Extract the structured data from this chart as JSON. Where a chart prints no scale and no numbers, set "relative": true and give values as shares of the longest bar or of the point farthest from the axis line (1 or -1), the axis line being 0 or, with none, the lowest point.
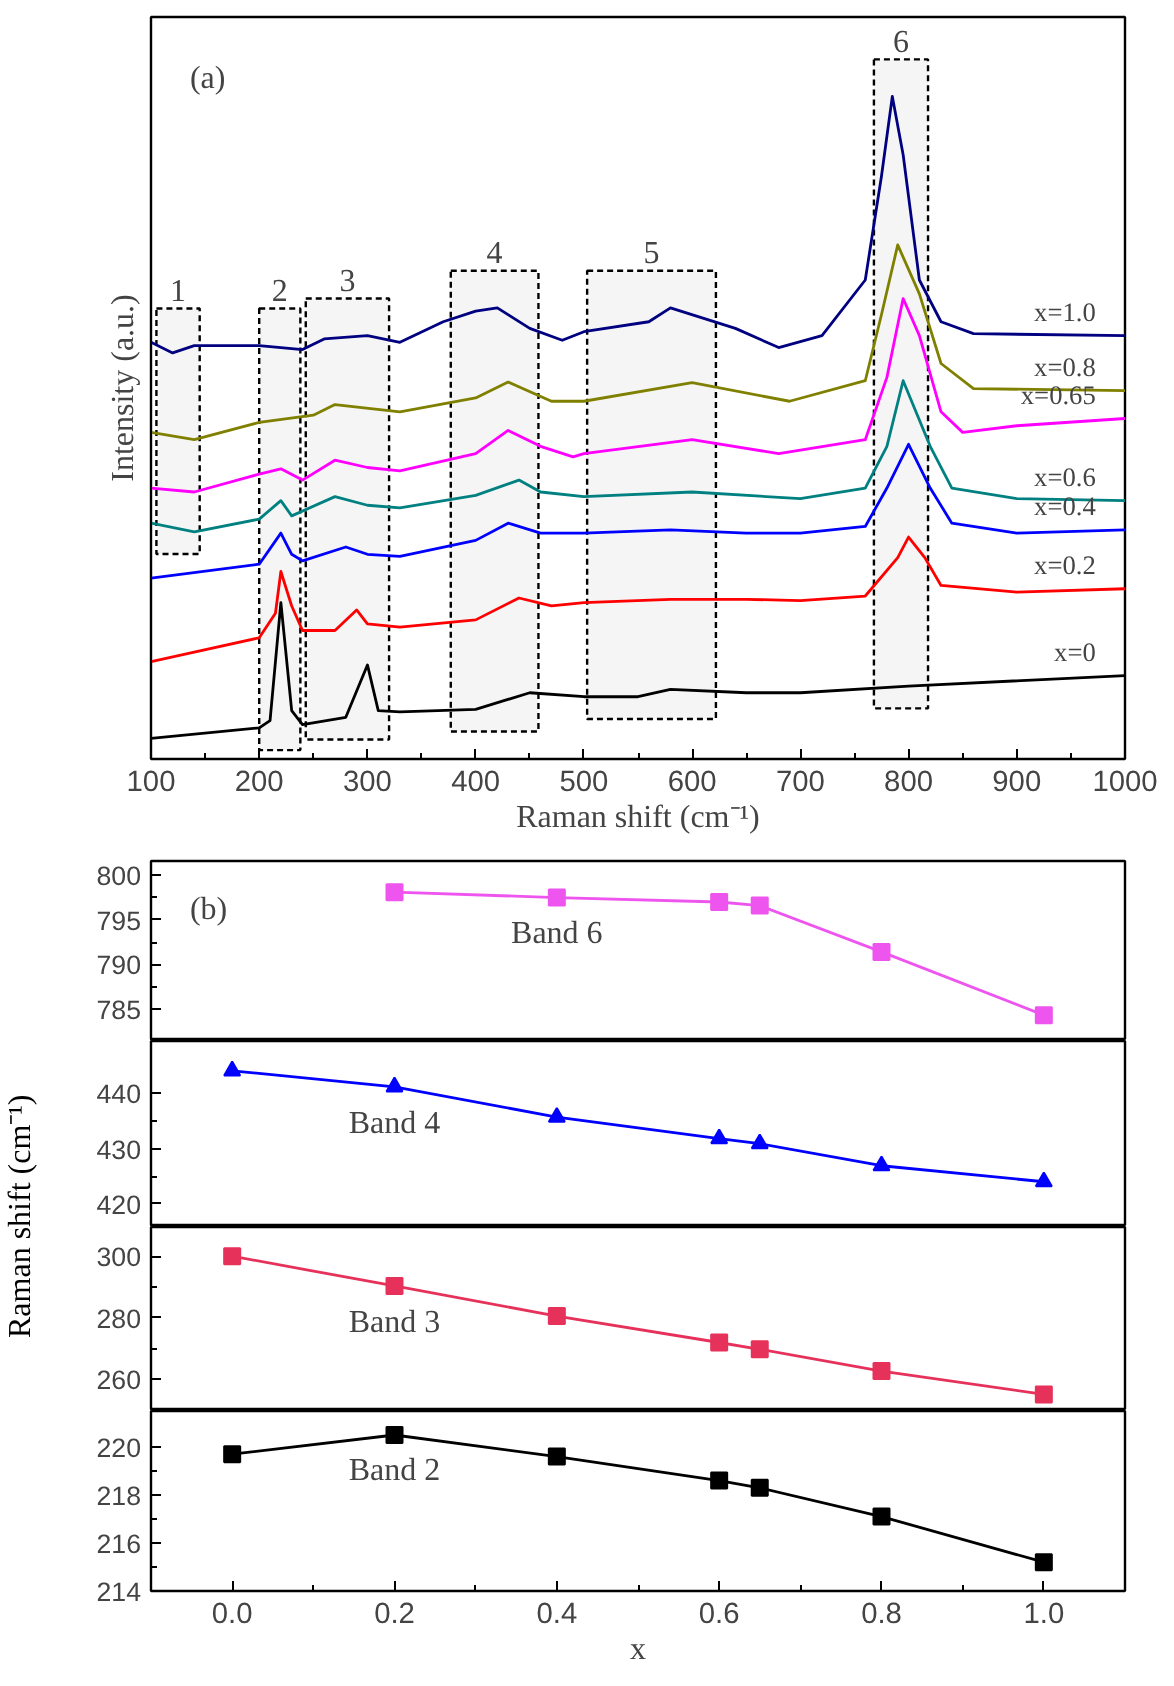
{
  "chart_data": [
    {
      "type": "line",
      "relative": true,
      "xlabel": "Raman shift (cm⁻¹)",
      "ylabel": "Intensity (a.u.)",
      "annotations": [
        "(a)"
      ],
      "xlim": [
        100,
        1000
      ],
      "xticks": [
        100,
        200,
        300,
        400,
        500,
        600,
        700,
        800,
        900,
        1000
      ],
      "series": [
        {
          "name": "x=0",
          "color": "#000000",
          "x": [
            100,
            200,
            210,
            220,
            230,
            240,
            280,
            300,
            310,
            330,
            400,
            450,
            500,
            550,
            580,
            650,
            700,
            800,
            1000
          ],
          "values": [
            0.031,
            0.047,
            0.058,
            0.236,
            0.073,
            0.052,
            0.063,
            0.142,
            0.073,
            0.071,
            0.075,
            0.1,
            0.094,
            0.094,
            0.105,
            0.1,
            0.1,
            0.11,
            0.126
          ]
        },
        {
          "name": "x=0.2",
          "color": "#ff0000",
          "x": [
            100,
            200,
            215,
            220,
            230,
            240,
            270,
            290,
            300,
            330,
            400,
            440,
            470,
            500,
            580,
            650,
            700,
            760,
            790,
            800,
            815,
            830,
            900,
            1000
          ],
          "values": [
            0.147,
            0.183,
            0.22,
            0.283,
            0.231,
            0.194,
            0.194,
            0.225,
            0.204,
            0.199,
            0.21,
            0.243,
            0.231,
            0.236,
            0.241,
            0.241,
            0.239,
            0.246,
            0.304,
            0.335,
            0.304,
            0.262,
            0.252,
            0.257
          ]
        },
        {
          "name": "x=0.4",
          "color": "#0000ff",
          "x": [
            100,
            200,
            220,
            230,
            240,
            280,
            300,
            330,
            400,
            430,
            460,
            500,
            580,
            650,
            700,
            760,
            780,
            800,
            820,
            840,
            900,
            1000
          ],
          "values": [
            0.273,
            0.294,
            0.341,
            0.309,
            0.299,
            0.32,
            0.309,
            0.306,
            0.33,
            0.356,
            0.341,
            0.341,
            0.346,
            0.341,
            0.341,
            0.351,
            0.409,
            0.475,
            0.409,
            0.356,
            0.341,
            0.346
          ]
        },
        {
          "name": "x=0.6",
          "color": "#008080",
          "x": [
            100,
            140,
            200,
            220,
            230,
            270,
            300,
            330,
            400,
            440,
            460,
            500,
            600,
            700,
            760,
            780,
            795,
            820,
            840,
            900,
            1000
          ],
          "values": [
            0.356,
            0.343,
            0.362,
            0.39,
            0.367,
            0.396,
            0.383,
            0.379,
            0.398,
            0.421,
            0.403,
            0.396,
            0.403,
            0.393,
            0.409,
            0.472,
            0.571,
            0.472,
            0.409,
            0.393,
            0.39
          ]
        },
        {
          "name": "x=0.65",
          "color": "#ff00ff",
          "x": [
            100,
            140,
            200,
            220,
            240,
            270,
            300,
            330,
            400,
            430,
            460,
            490,
            500,
            600,
            680,
            760,
            780,
            795,
            810,
            830,
            850,
            900,
            1000
          ],
          "values": [
            0.409,
            0.403,
            0.43,
            0.438,
            0.421,
            0.451,
            0.44,
            0.435,
            0.461,
            0.496,
            0.472,
            0.456,
            0.461,
            0.482,
            0.461,
            0.482,
            0.576,
            0.695,
            0.639,
            0.524,
            0.493,
            0.503,
            0.514
          ]
        },
        {
          "name": "x=0.8",
          "color": "#808000",
          "x": [
            100,
            140,
            200,
            250,
            270,
            330,
            400,
            430,
            470,
            500,
            600,
            690,
            760,
            775,
            790,
            810,
            830,
            860,
            1000
          ],
          "values": [
            0.493,
            0.482,
            0.508,
            0.519,
            0.535,
            0.524,
            0.545,
            0.569,
            0.54,
            0.54,
            0.568,
            0.54,
            0.571,
            0.671,
            0.776,
            0.702,
            0.597,
            0.559,
            0.556
          ]
        },
        {
          "name": "x=1.0",
          "color": "#000080",
          "x": [
            100,
            120,
            140,
            200,
            240,
            260,
            300,
            330,
            370,
            400,
            420,
            450,
            480,
            500,
            560,
            580,
            640,
            680,
            720,
            760,
            775,
            785,
            795,
            810,
            830,
            860,
            1000
          ],
          "values": [
            0.629,
            0.613,
            0.624,
            0.624,
            0.618,
            0.634,
            0.639,
            0.629,
            0.66,
            0.676,
            0.681,
            0.65,
            0.632,
            0.645,
            0.66,
            0.681,
            0.65,
            0.621,
            0.639,
            0.723,
            0.88,
            1.0,
            0.912,
            0.723,
            0.66,
            0.642,
            0.639
          ]
        }
      ],
      "bands": [
        {
          "axis": "x",
          "from": 105,
          "to": 145,
          "label": "1"
        },
        {
          "axis": "x",
          "from": 200,
          "to": 238,
          "label": "2"
        },
        {
          "axis": "x",
          "from": 243,
          "to": 320,
          "label": "3"
        },
        {
          "axis": "x",
          "from": 377,
          "to": 458,
          "label": "4"
        },
        {
          "axis": "x",
          "from": 503,
          "to": 622,
          "label": "5"
        },
        {
          "axis": "x",
          "from": 768,
          "to": 818,
          "label": "6"
        }
      ]
    },
    {
      "type": "line",
      "tick_labels": "y",
      "annotations": [
        "(b)"
      ],
      "xlim": [
        -0.1,
        1.1
      ],
      "ylim": [
        781.4,
        801.6
      ],
      "yticks": [
        785,
        790,
        795,
        800
      ],
      "series": [
        {
          "name": "Band 6",
          "color": "#ee55ee",
          "marker": "square",
          "x": [
            0.2,
            0.4,
            0.6,
            0.65,
            0.8,
            1.0
          ],
          "values": [
            798.1,
            797.5,
            797.0,
            796.6,
            791.4,
            784.3
          ]
        }
      ]
    },
    {
      "type": "line",
      "tick_labels": "y",
      "ylabel": "Raman shift (cm⁻¹)",
      "xlim": [
        -0.1,
        1.1
      ],
      "ylim": [
        415.8,
        449.5
      ],
      "yticks": [
        420,
        430,
        440
      ],
      "series": [
        {
          "name": "Band 4",
          "color": "#0000ff",
          "marker": "triangle",
          "x": [
            0,
            0.2,
            0.4,
            0.6,
            0.65,
            0.8,
            1.0
          ],
          "values": [
            444.1,
            441.2,
            435.7,
            431.8,
            430.9,
            426.9,
            424.0
          ]
        }
      ]
    },
    {
      "type": "line",
      "tick_labels": "y",
      "xlim": [
        -0.1,
        1.1
      ],
      "ylim": [
        249.6,
        309.5
      ],
      "yticks": [
        260,
        280,
        300
      ],
      "series": [
        {
          "name": "Band 3",
          "color": "#e6325a",
          "marker": "square",
          "x": [
            0,
            0.2,
            0.4,
            0.6,
            0.65,
            0.8,
            1.0
          ],
          "values": [
            300.0,
            290.3,
            280.5,
            271.9,
            269.7,
            262.6,
            255.0
          ]
        }
      ]
    },
    {
      "type": "line",
      "xlabel": "x",
      "xlim": [
        -0.1,
        1.1
      ],
      "ylim": [
        214.0,
        221.5
      ],
      "yticks": [
        214,
        216,
        218,
        220
      ],
      "xticks": [
        {
          "value": 0,
          "label": "0.0"
        },
        {
          "value": 0.2,
          "label": "0.2"
        },
        {
          "value": 0.4,
          "label": "0.4"
        },
        {
          "value": 0.6,
          "label": "0.6"
        },
        {
          "value": 0.8,
          "label": "0.8"
        },
        {
          "value": 1.0,
          "label": "1.0"
        }
      ],
      "series": [
        {
          "name": "Band 2",
          "color": "#000000",
          "marker": "square",
          "x": [
            0,
            0.2,
            0.4,
            0.6,
            0.65,
            0.8,
            1.0
          ],
          "values": [
            219.7,
            220.5,
            219.6,
            218.6,
            218.3,
            217.1,
            215.2
          ]
        }
      ]
    }
  ]
}
